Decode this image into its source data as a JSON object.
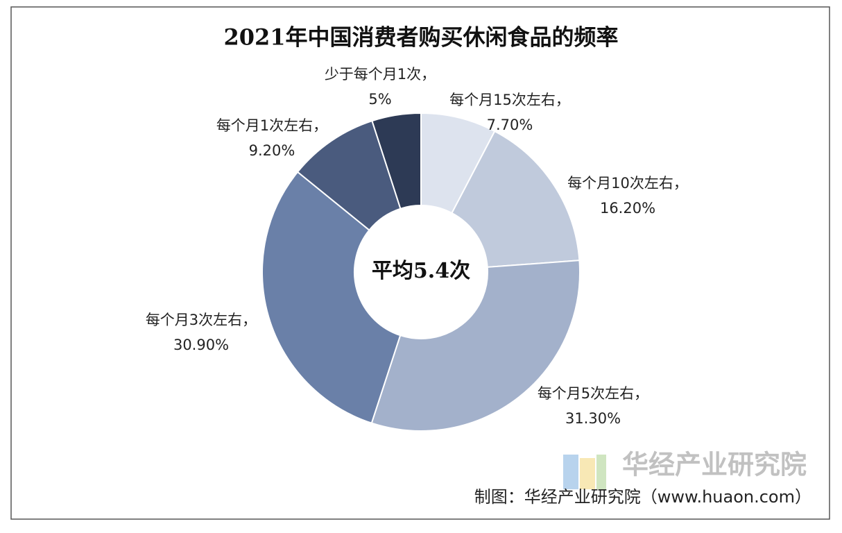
{
  "chart_data": {
    "type": "donut",
    "title": "2021年中国消费者购买休闲食品的频率",
    "categories": [
      "每个月15次左右，",
      "每个月10次左右，",
      "每个月5次左右，",
      "每个月3次左右，",
      "每个月1次左右，",
      "少于每个月1次，"
    ],
    "values": [
      7.7,
      16.2,
      31.3,
      30.9,
      9.2,
      5
    ],
    "value_labels": [
      "7.70%",
      "16.20%",
      "31.30%",
      "30.90%",
      "9.20%",
      "5%"
    ],
    "colors": [
      "#dde3ee",
      "#c0cadc",
      "#a3b1cb",
      "#6a80a8",
      "#4a5b7e",
      "#2d3a55"
    ],
    "center_label": "平均5.4次",
    "source": "制图：华经产业研究院（www.huaon.com）",
    "watermark": "华经产业研究院"
  }
}
